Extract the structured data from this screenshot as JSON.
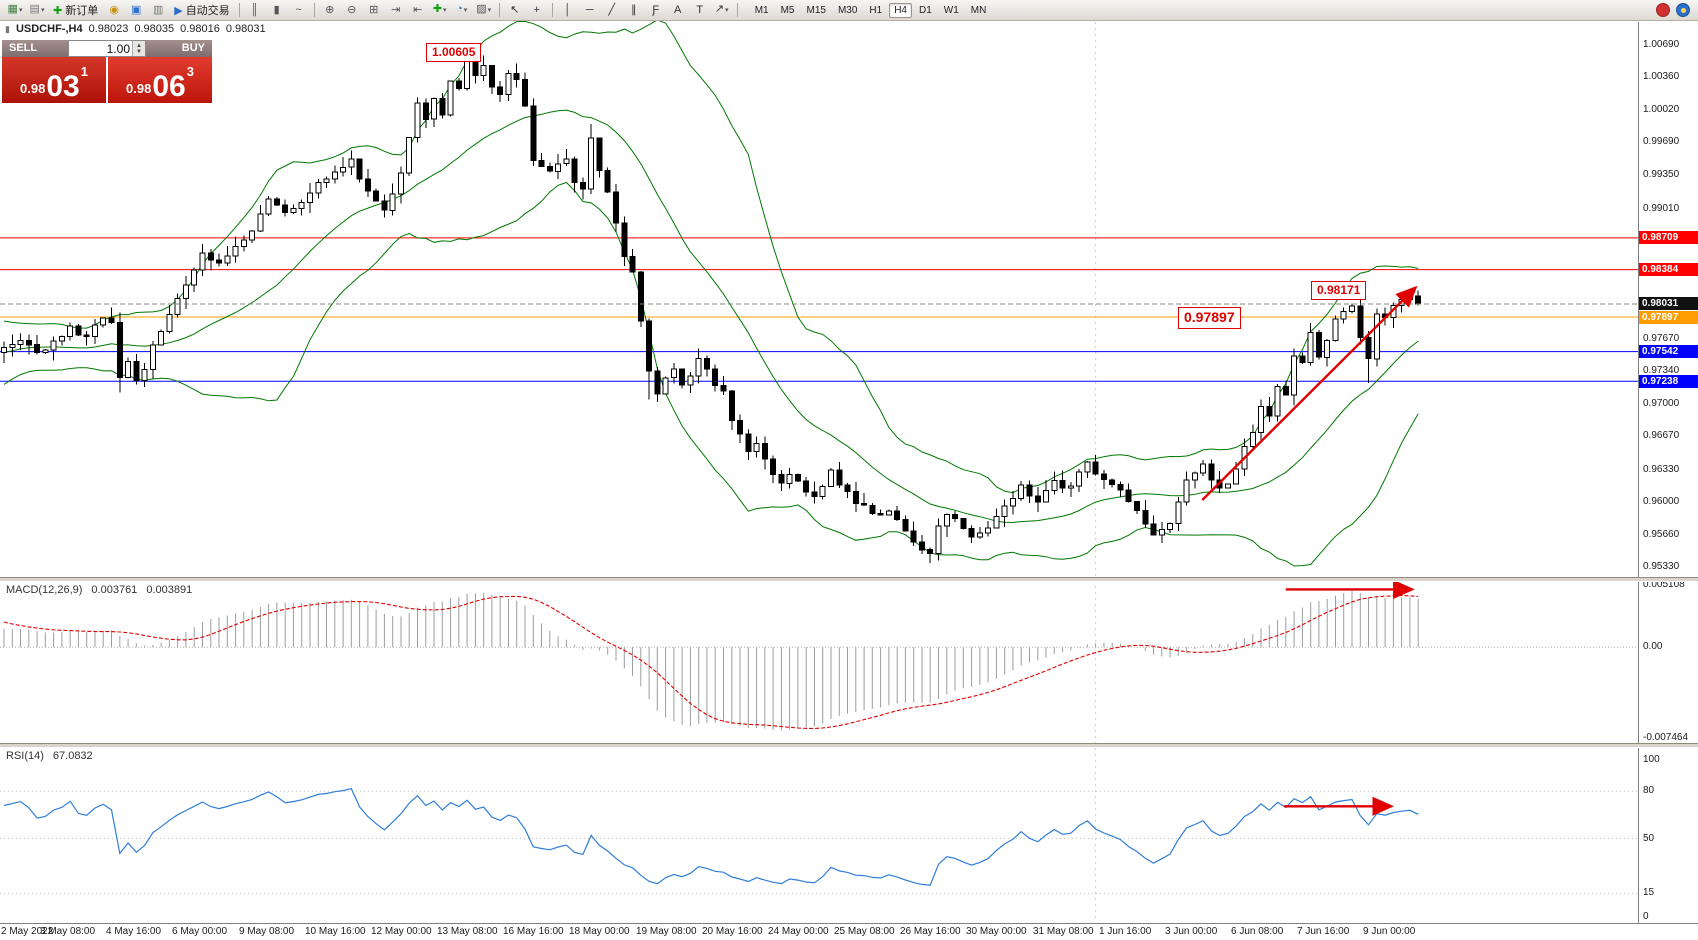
{
  "colors": {
    "bollinger": "#007800",
    "rsi": "#2f7ed8",
    "annotation": "#e00000",
    "macd_signal": "#e00000",
    "histogram": "#9c9c9c"
  },
  "window": {
    "symbol_title": "USDCHF-,H4",
    "ohlc": {
      "o": "0.98023",
      "h": "0.98035",
      "l": "0.98016",
      "c": "0.98031"
    }
  },
  "toolbar": {
    "items": [
      {
        "type": "icon",
        "name": "new-chart-button",
        "glyph": "▦",
        "color": "#3f7d3f",
        "dd": true
      },
      {
        "type": "icon",
        "name": "profiles-button",
        "glyph": "▤",
        "color": "#777",
        "dd": true
      },
      {
        "type": "button",
        "name": "new-order-button",
        "glyph": "✚",
        "color": "#18a018",
        "label": "新订单"
      },
      {
        "type": "icon",
        "name": "mql5-icon",
        "glyph": "◉",
        "color": "#c89010"
      },
      {
        "type": "icon",
        "name": "market-icon",
        "glyph": "▣",
        "color": "#2a6fc9"
      },
      {
        "type": "icon",
        "name": "data-window-icon",
        "glyph": "▥",
        "color": "#777"
      },
      {
        "type": "button",
        "name": "autotrading-button",
        "glyph": "▶",
        "color": "#2a6fc9",
        "label": "自动交易"
      },
      {
        "type": "sep"
      },
      {
        "type": "icon",
        "name": "bar-chart-icon",
        "glyph": "║",
        "color": "#555"
      },
      {
        "type": "icon",
        "name": "candlestick-chart-icon",
        "glyph": "▮",
        "color": "#555"
      },
      {
        "type": "icon",
        "name": "line-chart-icon",
        "glyph": "~",
        "color": "#555"
      },
      {
        "type": "sep"
      },
      {
        "type": "icon",
        "name": "zoom-in-icon",
        "glyph": "⊕",
        "color": "#555"
      },
      {
        "type": "icon",
        "name": "zoom-out-icon",
        "glyph": "⊖",
        "color": "#555"
      },
      {
        "type": "icon",
        "name": "tile-windows-icon",
        "glyph": "⊞",
        "color": "#555"
      },
      {
        "type": "icon",
        "name": "auto-scroll-icon",
        "glyph": "⇥",
        "color": "#555"
      },
      {
        "type": "icon",
        "name": "chart-shift-icon",
        "glyph": "⇤",
        "color": "#555"
      },
      {
        "type": "icon",
        "name": "indicators-icon",
        "glyph": "✚",
        "color": "#18a018",
        "dd": true
      },
      {
        "type": "icon",
        "name": "periods-icon",
        "glyph": "◔",
        "color": "#2a6fc9",
        "dd": true
      },
      {
        "type": "icon",
        "name": "templates-icon",
        "glyph": "▨",
        "color": "#555",
        "dd": true
      },
      {
        "type": "sep"
      },
      {
        "type": "icon",
        "name": "cursor-icon",
        "glyph": "↖",
        "color": "#333"
      },
      {
        "type": "icon",
        "name": "crosshair-icon",
        "glyph": "+",
        "color": "#333"
      },
      {
        "type": "sep"
      },
      {
        "type": "icon",
        "name": "vertical-line-icon",
        "glyph": "│",
        "color": "#333"
      },
      {
        "type": "icon",
        "name": "horizontal-line-icon",
        "glyph": "─",
        "color": "#333"
      },
      {
        "type": "icon",
        "name": "trendline-icon",
        "glyph": "╱",
        "color": "#333"
      },
      {
        "type": "icon",
        "name": "equidistant-channel-icon",
        "glyph": "∥",
        "color": "#333"
      },
      {
        "type": "icon",
        "name": "fibonacci-icon",
        "glyph": "Ƒ",
        "color": "#333"
      },
      {
        "type": "icon",
        "name": "text-icon",
        "glyph": "A",
        "color": "#333"
      },
      {
        "type": "icon",
        "name": "text-label-icon",
        "glyph": "T",
        "color": "#333"
      },
      {
        "type": "icon",
        "name": "arrows-tool-icon",
        "glyph": "↗",
        "color": "#333",
        "dd": true
      },
      {
        "type": "sep"
      }
    ],
    "timeframes": [
      "M1",
      "M5",
      "M15",
      "M30",
      "H1",
      "H4",
      "D1",
      "W1",
      "MN"
    ],
    "active_timeframe": "H4",
    "right_icons": [
      {
        "name": "news-icon",
        "color": "#d03030"
      },
      {
        "name": "mql5-community-icon",
        "color": "#2a6fc9"
      }
    ]
  },
  "one_click": {
    "sell_label": "SELL",
    "buy_label": "BUY",
    "lot": "1.00",
    "bid_main": "0.98",
    "bid_big": "03",
    "bid_sup": "1",
    "ask_main": "0.98",
    "ask_big": "06",
    "ask_sup": "3"
  },
  "chart_data": {
    "type": "candlestick",
    "symbol": "USDCHF",
    "period": "H4",
    "bars": 172,
    "ylim": [
      0.9533,
      1.0069
    ],
    "last_close": 0.98031,
    "bollinger": {
      "period": 20,
      "deviation": 2
    },
    "price_waypoints": [
      [
        -30,
        0.9648
      ],
      [
        -25,
        0.9678
      ],
      [
        -20,
        0.9712
      ],
      [
        -15,
        0.9752
      ],
      [
        -12,
        0.9788
      ],
      [
        -9,
        0.9762
      ],
      [
        -6,
        0.9748
      ],
      [
        -3,
        0.974
      ],
      [
        0,
        0.9758
      ],
      [
        2,
        0.9768
      ],
      [
        4,
        0.9752
      ],
      [
        6,
        0.9763
      ],
      [
        8,
        0.9779
      ],
      [
        10,
        0.9768
      ],
      [
        12,
        0.979
      ],
      [
        13,
        0.9782
      ],
      [
        14,
        0.9729
      ],
      [
        15,
        0.9742
      ],
      [
        16,
        0.9722
      ],
      [
        17,
        0.9738
      ],
      [
        18,
        0.9762
      ],
      [
        20,
        0.9792
      ],
      [
        22,
        0.9822
      ],
      [
        24,
        0.9855
      ],
      [
        26,
        0.9846
      ],
      [
        28,
        0.9862
      ],
      [
        30,
        0.988
      ],
      [
        32,
        0.9912
      ],
      [
        34,
        0.9898
      ],
      [
        36,
        0.9906
      ],
      [
        38,
        0.9928
      ],
      [
        40,
        0.9938
      ],
      [
        42,
        0.995
      ],
      [
        44,
        0.9918
      ],
      [
        46,
        0.9898
      ],
      [
        48,
        0.9938
      ],
      [
        50,
        1.0008
      ],
      [
        51,
        0.9992
      ],
      [
        52,
        1.0012
      ],
      [
        53,
        0.9998
      ],
      [
        54,
        1.0032
      ],
      [
        55,
        1.0022
      ],
      [
        56,
        1.0055
      ],
      [
        57,
        1.0038
      ],
      [
        58,
        1.005
      ],
      [
        59,
        1.0028
      ],
      [
        60,
        1.0018
      ],
      [
        61,
        1.004
      ],
      [
        62,
        1.0035
      ],
      [
        63,
        1.0008
      ],
      [
        64,
        0.9952
      ],
      [
        66,
        0.9938
      ],
      [
        68,
        0.9952
      ],
      [
        69,
        0.9926
      ],
      [
        70,
        0.992
      ],
      [
        71,
        0.9972
      ],
      [
        72,
        0.994
      ],
      [
        73,
        0.9918
      ],
      [
        74,
        0.9888
      ],
      [
        75,
        0.9852
      ],
      [
        76,
        0.9834
      ],
      [
        77,
        0.9788
      ],
      [
        78,
        0.9732
      ],
      [
        79,
        0.9713
      ],
      [
        80,
        0.9728
      ],
      [
        81,
        0.9738
      ],
      [
        82,
        0.9722
      ],
      [
        83,
        0.9728
      ],
      [
        84,
        0.9745
      ],
      [
        85,
        0.9738
      ],
      [
        86,
        0.9718
      ],
      [
        87,
        0.9712
      ],
      [
        88,
        0.9682
      ],
      [
        89,
        0.9668
      ],
      [
        90,
        0.9652
      ],
      [
        91,
        0.966
      ],
      [
        92,
        0.9645
      ],
      [
        93,
        0.963
      ],
      [
        94,
        0.9618
      ],
      [
        95,
        0.9628
      ],
      [
        96,
        0.9622
      ],
      [
        97,
        0.961
      ],
      [
        98,
        0.9606
      ],
      [
        99,
        0.9618
      ],
      [
        100,
        0.963
      ],
      [
        101,
        0.9618
      ],
      [
        102,
        0.9608
      ],
      [
        103,
        0.96
      ],
      [
        104,
        0.9596
      ],
      [
        105,
        0.959
      ],
      [
        106,
        0.9585
      ],
      [
        107,
        0.9592
      ],
      [
        108,
        0.9584
      ],
      [
        109,
        0.9572
      ],
      [
        110,
        0.956
      ],
      [
        111,
        0.9552
      ],
      [
        112,
        0.9548
      ],
      [
        113,
        0.9576
      ],
      [
        114,
        0.9588
      ],
      [
        115,
        0.9585
      ],
      [
        116,
        0.957
      ],
      [
        117,
        0.9562
      ],
      [
        118,
        0.9566
      ],
      [
        119,
        0.9572
      ],
      [
        120,
        0.9585
      ],
      [
        122,
        0.9605
      ],
      [
        123,
        0.9618
      ],
      [
        124,
        0.9608
      ],
      [
        125,
        0.96
      ],
      [
        126,
        0.9612
      ],
      [
        127,
        0.9622
      ],
      [
        128,
        0.9615
      ],
      [
        129,
        0.9618
      ],
      [
        130,
        0.9632
      ],
      [
        131,
        0.964
      ],
      [
        132,
        0.9628
      ],
      [
        133,
        0.9625
      ],
      [
        134,
        0.9618
      ],
      [
        135,
        0.9612
      ],
      [
        136,
        0.96
      ],
      [
        137,
        0.959
      ],
      [
        138,
        0.9576
      ],
      [
        139,
        0.9565
      ],
      [
        140,
        0.957
      ],
      [
        141,
        0.9576
      ],
      [
        142,
        0.9598
      ],
      [
        143,
        0.9622
      ],
      [
        144,
        0.9632
      ],
      [
        145,
        0.9638
      ],
      [
        146,
        0.962
      ],
      [
        147,
        0.9612
      ],
      [
        148,
        0.9616
      ],
      [
        149,
        0.9632
      ],
      [
        150,
        0.9655
      ],
      [
        151,
        0.9672
      ],
      [
        152,
        0.9698
      ],
      [
        153,
        0.9688
      ],
      [
        154,
        0.9718
      ],
      [
        155,
        0.9712
      ],
      [
        156,
        0.9752
      ],
      [
        157,
        0.9742
      ],
      [
        158,
        0.9772
      ],
      [
        159,
        0.9748
      ],
      [
        160,
        0.9768
      ],
      [
        161,
        0.9788
      ],
      [
        162,
        0.9795
      ],
      [
        163,
        0.98
      ],
      [
        164,
        0.9768
      ],
      [
        165,
        0.9745
      ],
      [
        166,
        0.9792
      ],
      [
        167,
        0.9788
      ],
      [
        168,
        0.98
      ],
      [
        169,
        0.9808
      ],
      [
        170,
        0.9812
      ],
      [
        171,
        0.98031
      ]
    ],
    "wick_overrides": {
      "14": {
        "low": 0.9712
      },
      "56": {
        "high": 1.00605
      },
      "71": {
        "high": 0.9988
      },
      "78": {
        "low": 0.9705
      },
      "112": {
        "low": 0.9537
      },
      "165": {
        "low": 0.9722
      }
    }
  },
  "level_lines": [
    {
      "price": 0.98709,
      "color": "#ff0000"
    },
    {
      "price": 0.98384,
      "color": "#ff0000"
    },
    {
      "price": 0.97897,
      "color": "#ff9c00"
    },
    {
      "price": 0.97542,
      "color": "#0000ff"
    },
    {
      "price": 0.97238,
      "color": "#0000ff"
    }
  ],
  "current_price": {
    "value": 0.98031,
    "label": "0.98031"
  },
  "price_axis": [
    "1.00690",
    "1.00360",
    "1.00020",
    "0.99690",
    "0.99350",
    "0.99010",
    "0.97670",
    "0.97340",
    "0.97000",
    "0.96670",
    "0.96330",
    "0.96000",
    "0.95660",
    "0.95330"
  ],
  "macd": {
    "label": "MACD(12,26,9)",
    "value": "0.003761",
    "signal_value": "0.003891",
    "axis": [
      "0.005108",
      "0.00",
      "-0.007464"
    ],
    "params": {
      "fast": 12,
      "slow": 26,
      "signal": 9
    }
  },
  "rsi": {
    "label": "RSI(14)",
    "value": "67.0832",
    "axis": [
      "100",
      "80",
      "50",
      "15",
      "0"
    ],
    "levels": [
      80,
      50,
      15
    ]
  },
  "annotations": [
    {
      "type": "textbox",
      "text": "1.00605",
      "bar": 51,
      "price": 1.0071,
      "font": 12
    },
    {
      "type": "textbox",
      "text": "0.97897",
      "bar": 142,
      "price": 0.98,
      "font": 14
    },
    {
      "type": "textbox",
      "text": "0.98171",
      "bar": 158,
      "price": 0.9827,
      "font": 12
    },
    {
      "type": "arrow",
      "pane": "price",
      "from": [
        144.9,
        0.96018
      ],
      "to": [
        170.5,
        0.98184
      ]
    },
    {
      "type": "arrow",
      "pane": "macd",
      "from_bar": 155,
      "to_bar": 170,
      "value": 0.00475
    },
    {
      "type": "arrow",
      "pane": "rsi",
      "from_bar": 154.8,
      "to_bar": 167.5,
      "value": 70.5
    }
  ],
  "time_axis": [
    [
      0,
      "2 May 2022"
    ],
    [
      8,
      "3 May 08:00"
    ],
    [
      16,
      "4 May 16:00"
    ],
    [
      24,
      "6 May 00:00"
    ],
    [
      32,
      "9 May 08:00"
    ],
    [
      40,
      "10 May 16:00"
    ],
    [
      48,
      "12 May 00:00"
    ],
    [
      56,
      "13 May 08:00"
    ],
    [
      64,
      "16 May 16:00"
    ],
    [
      72,
      "18 May 00:00"
    ],
    [
      80,
      "19 May 08:00"
    ],
    [
      88,
      "20 May 16:00"
    ],
    [
      96,
      "24 May 00:00"
    ],
    [
      104,
      "25 May 08:00"
    ],
    [
      112,
      "26 May 16:00"
    ],
    [
      120,
      "30 May 00:00"
    ],
    [
      128,
      "31 May 08:00"
    ],
    [
      136,
      "1 Jun 16:00"
    ],
    [
      144,
      "3 Jun 00:00"
    ],
    [
      152,
      "6 Jun 08:00"
    ],
    [
      160,
      "7 Jun 16:00"
    ],
    [
      168,
      "9 Jun 00:00"
    ]
  ]
}
